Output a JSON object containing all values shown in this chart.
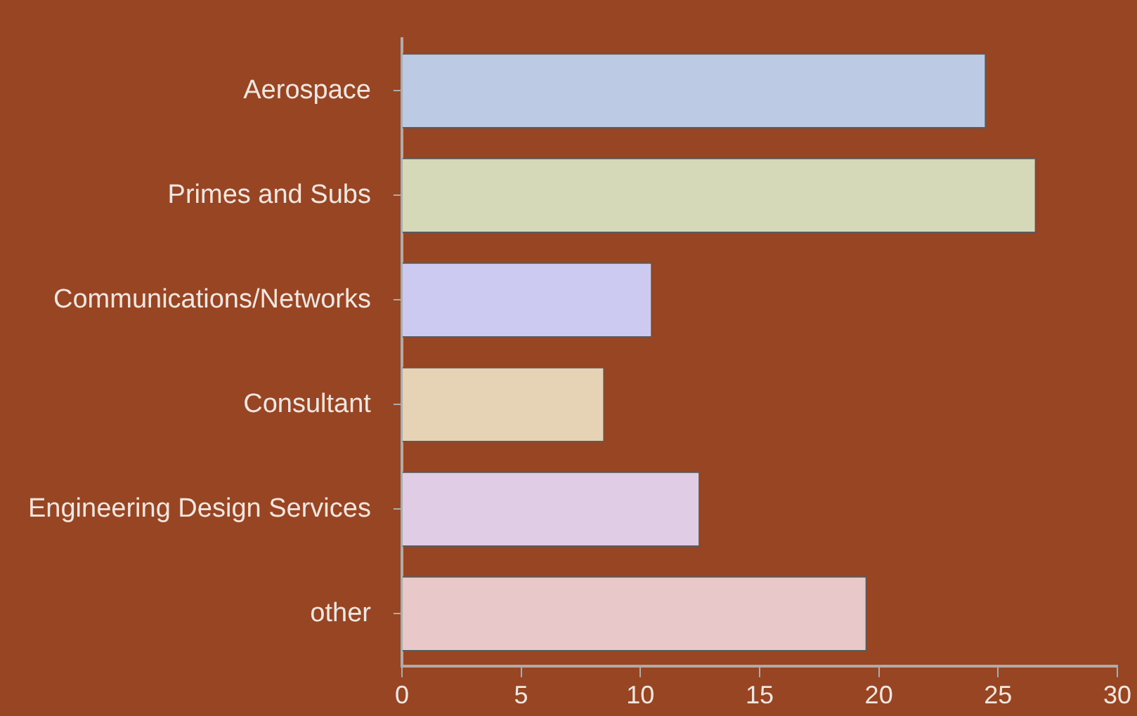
{
  "chart_data": {
    "type": "bar",
    "orientation": "horizontal",
    "categories": [
      "Aerospace",
      "Primes and Subs",
      "Communications/Networks",
      "Consultant",
      "Engineering Design Services",
      "other"
    ],
    "values": [
      24.5,
      26.6,
      10.5,
      8.5,
      12.5,
      19.5
    ],
    "colors": [
      "#bccbe3",
      "#d6d9b8",
      "#cccaf0",
      "#e6d2b5",
      "#e0cce4",
      "#e8c8c8"
    ],
    "xlim": [
      0,
      30
    ],
    "xticks": [
      0,
      5,
      10,
      15,
      20,
      25,
      30
    ],
    "grid": false
  }
}
